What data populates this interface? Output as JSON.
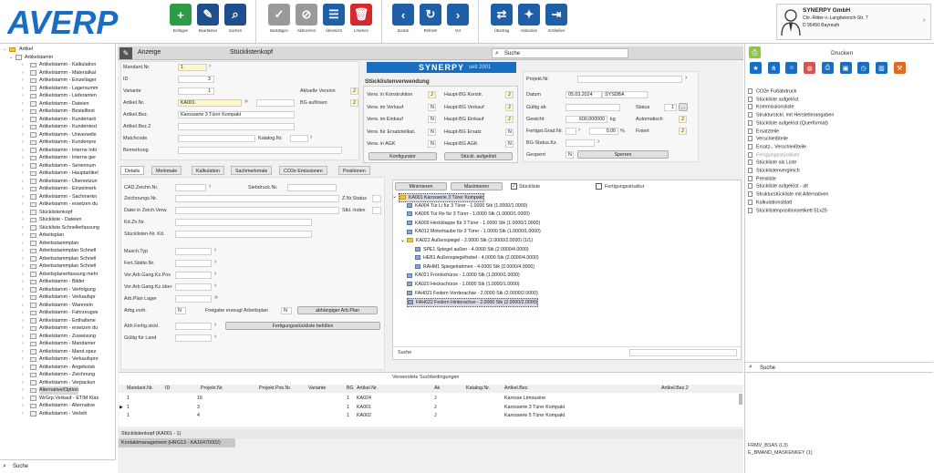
{
  "app": {
    "logo_text": "AVERP"
  },
  "toolbar": {
    "groups": [
      [
        {
          "label": "Einfügen",
          "icon": "plus-icon",
          "color": "#2e9b46"
        },
        {
          "label": "Bearbeiten",
          "icon": "pencil-icon",
          "color": "#1f4e8c"
        },
        {
          "label": "Suchen",
          "icon": "search-icon",
          "color": "#1f4e8c"
        }
      ],
      [
        {
          "label": "Bestätigen",
          "icon": "check-icon",
          "color": "#9a9a9a"
        },
        {
          "label": "Abbrechen",
          "icon": "cancel-icon",
          "color": "#9a9a9a"
        },
        {
          "label": "Übersicht",
          "icon": "list-icon",
          "color": "#1f5fa8"
        },
        {
          "label": "Löschen",
          "icon": "trash-icon",
          "color": "#d6282d"
        }
      ],
      [
        {
          "label": "Zurück",
          "icon": "chevron-left-icon",
          "color": "#1f5fa8"
        },
        {
          "label": "Refresh",
          "icon": "refresh-icon",
          "color": "#1f5fa8"
        },
        {
          "label": "Vor",
          "icon": "chevron-right-icon",
          "color": "#1f5fa8"
        }
      ],
      [
        {
          "label": "Übertrag",
          "icon": "transfer-icon",
          "color": "#1f5fa8"
        },
        {
          "label": "Abdocken",
          "icon": "pin-icon",
          "color": "#1f5fa8"
        },
        {
          "label": "Schließen",
          "icon": "exit-icon",
          "color": "#1f5fa8"
        }
      ]
    ]
  },
  "company": {
    "name": "SYNERPY GmbH",
    "street": "Chr.-Ritter-v.-Langheinrich-Str. 7",
    "city": "D 95450 Bayreuth"
  },
  "tree": {
    "root": "Artikel",
    "stamm": "Artikelstamm",
    "items": [
      "Artikelstamm - Kalkulation",
      "Artikelstamm - Materialkal",
      "Artikelstamm - Einzellager",
      "Artikelstamm - Lagersumm",
      "Artikelstamm - Lieferanten",
      "Artikelstamm - Dateien",
      "Artikelstamm - Bestelltext",
      "Artikelstamm - Kundenarti",
      "Artikelstamm - Kundentext",
      "Artikelstamm - Universelle",
      "Artikelstamm - Kundenpre",
      "Artikelstamm - Interne Info",
      "Artikelstamm - Interne ger",
      "Artikelstamm - Seriennum",
      "Artikelstamm - Hauptartikel",
      "Artikelstamm - Übersetzun",
      "Artikelstamm - Einzelmerk",
      "Artikelstamm - Sachmerkn",
      "Artikelstamm - ersetzen du",
      "Stücklistenkopf",
      "Stückliste - Dateien",
      "Stückliste Schnellerfassung",
      "Arbeitsplan",
      "Arbeitsstammplan",
      "Arbeitsstammplan Schnell",
      "Arbeitsstammplan Schnell",
      "Arbeitsstammplan Schnell",
      "Arbeitsplanerfassung mehr",
      "Artikelstamm - Bilder",
      "Artikelstamm - Verfolgung",
      "Artikelstamm - Verkaufspr",
      "Artikelstamm - Warenein",
      "Artikelstamm - Fahrzeugve",
      "Artikelstamm - Enthaltene",
      "Artikelstamm - ersetzen du",
      "Artikelstamm - Zuweisung",
      "Artikelstamm - Mandanter",
      "Artikelstamm - Mand.spez",
      "Artikelstamm - Verkaufspre",
      "Artikelstamm - Angebotsk",
      "Artikelstamm - Zeichnung",
      "Artikelstamm - Verpackun",
      "Alternative/Option",
      "WrGrp.Verkauf - ETIM Klas",
      "Artikelstamm - Alternative",
      "Artikelstamm - Verleih"
    ],
    "selected_index": 42,
    "search_label": "Suche"
  },
  "header": {
    "anzeige": "Anzeige",
    "title": "Stücklistenkopf",
    "search": "Suche"
  },
  "form": {
    "mandant_label": "Mandant.Nr.",
    "mandant_value": "1",
    "id_label": "ID",
    "id_value": "3",
    "variante_label": "Variante",
    "variante_value": "1",
    "artikelnr_label": "Artikel.Nr.",
    "artikelnr_value": "KA001",
    "artikelbez_label": "Artikel.Bez.",
    "artikelbez_value": "Karosserie 3 Türer Kompakt",
    "artikelbez2_label": "Artikel.Bez.2",
    "matchcode_label": "Matchcode",
    "katalog_label": "Katalog.Nr.",
    "bemerkung_label": "Bemerkung",
    "aktuelle_version_label": "Aktuelle Version",
    "aktuelle_version_value": "J",
    "bg_aufloesen_label": "BG auflösen",
    "bg_aufloesen_value": "J"
  },
  "brand": {
    "name": "SYNERPY",
    "since": "seit 2001",
    "color": "#1a6ec2"
  },
  "verwendung": {
    "title": "Stücklistenverwendung",
    "left": [
      {
        "label": "Verw. in Konstruktion",
        "v": "J"
      },
      {
        "label": "Verw. im Verkauf",
        "v": "N"
      },
      {
        "label": "Verw. im Einkauf",
        "v": "N"
      },
      {
        "label": "Verw. für Ersatzteilkat.",
        "v": "N"
      },
      {
        "label": "Verw. in AGK",
        "v": "N"
      }
    ],
    "right": [
      {
        "label": "Haupt-BG Konstr.",
        "v": "J"
      },
      {
        "label": "Haupt-BG Verkauf",
        "v": "J"
      },
      {
        "label": "Haupt-BG Einkauf",
        "v": "J"
      },
      {
        "label": "Haupt-BG Ersatz",
        "v": "N"
      },
      {
        "label": "Haupt-BG AGK",
        "v": "N"
      }
    ],
    "konfigurator_btn": "Konfigurator",
    "stueckl_aufgeloest_btn": "Stückl. aufgelöst"
  },
  "projekt": {
    "projekt_label": "Projekt.Nr.",
    "datum_label": "Datum",
    "datum_value": "05.03.2024",
    "datum_user": "SYSDBA",
    "gueltig_label": "Gültig ab",
    "status_label": "Status",
    "status_value": "1",
    "gewicht_label": "Gewicht",
    "gewicht_value": "600,000000",
    "gewicht_unit": "kg",
    "automatisch_label": "Automatisch",
    "automatisch_value": "J",
    "fertigst_label": "Fertigst.Grad.Nr.",
    "fertigst_value": "0,00",
    "fertigst_unit": "%",
    "fixiert_label": "Fixiert",
    "fixiert_value": "J",
    "bgstatus_label": "BG-Status.Kz.",
    "gesperrt_label": "Gesperrt",
    "gesperrt_value": "N",
    "sperren_btn": "Sperren"
  },
  "tabs": [
    "Details",
    "Merkmale",
    "Kalkulation",
    "Sachmerkmale",
    "CO2e Emissionen",
    "Positionen"
  ],
  "details": {
    "cad_label": "CAD.Zeichn.Nr.",
    "siebdruck_label": "Siebdruck.Nr.",
    "zeichnungs_label": "Zeichnungs.Nr.",
    "znrstatus_label": "Z.Nr.Status",
    "datei_label": "Datei in Zeich.Verw.",
    "stklindex_label": "Stkl.-Index",
    "kdzn_label": "Kd.Zn.Nr.",
    "stklnr_label": "Stücklisten-Nr. Kd.",
    "maschtyp_label": "Masch.Typ",
    "fertstaette_label": "Fert.Stätte.Nr.",
    "vorarb_pos_label": "Vor.Arb.Gang.Kz.Pos",
    "vorarb_ueb_label": "Vor.Arb.Gang.Kz.über",
    "arbplan_label": "Arb.Plan Lager",
    "arbgvorh_label": "Arbg.vorh.",
    "arbgvorh_value": "N",
    "freigabe_label": "Freigabe erzeugt Arbeitsplan",
    "freigabe_value": "N",
    "abh_arbplan_btn": "abhängiger Arb.Plan",
    "abh_fertig_label": "Abh.Fertig.stckl.",
    "fertig_befuellen_btn": "Fertigungsstückliste befüllen",
    "gueltig_land_label": "Gültig für Land"
  },
  "bom": {
    "minimieren": "Minimieren",
    "maximieren": "Maximieren",
    "stueckliste_label": "Stückliste",
    "fertigungsstruktur_label": "Fertigungsstruktur",
    "search_label": "Suche",
    "lines": [
      {
        "t": "KA001 Karosserie 3 Türer Kompakt",
        "lvl": 0,
        "type": "folder",
        "hl": true
      },
      {
        "t": "KA004 Tür Li für 3 Türer - 1.0000 Stk (1.0000/1.0000)",
        "lvl": 1,
        "type": "item"
      },
      {
        "t": "KA005 Tür Re für 3 Türer - 1.0000 Stk (1.0000/1.0000)",
        "lvl": 1,
        "type": "item"
      },
      {
        "t": "KA009 Heckklappe für 3 Türer - 1.0000 Stk (1.0000/1.0000)",
        "lvl": 1,
        "type": "item"
      },
      {
        "t": "KA012 Motorhaube für 3 Türer - 1.0000 Stk (1.0000/1.0000)",
        "lvl": 1,
        "type": "item"
      },
      {
        "t": "KA022 Außenspiegel - 2.0000 Stk (2.0000/2.0000) (1/1)",
        "lvl": 1,
        "type": "folder"
      },
      {
        "t": "SPE1 Spiegel außen - 4.0000 Stk (2.0000/4.0000)",
        "lvl": 2,
        "type": "item"
      },
      {
        "t": "HEB1 Außenspiegelhebel - 4.0000 Stk (2.0000/4.0000)",
        "lvl": 2,
        "type": "item"
      },
      {
        "t": "RAHM1 Spiegelrahmen - 4.0000 Stk (2.0000/4.0000)",
        "lvl": 2,
        "type": "item"
      },
      {
        "t": "KA021 Frontschürze - 1.0000 Stk (1.0000/1.0000)",
        "lvl": 1,
        "type": "item"
      },
      {
        "t": "KA020 Heckschürze - 1.0000 Stk (1.0000/1.0000)",
        "lvl": 1,
        "type": "item"
      },
      {
        "t": "FAH021 Federn Vorderachse - 2.0000 Stk (2.0000/2.0000)",
        "lvl": 1,
        "type": "item"
      },
      {
        "t": "FAH022 Federn Hinterachse - 2.0000 Stk (2.0000/2.0000)",
        "lvl": 1,
        "type": "item",
        "hl": true
      }
    ]
  },
  "suchbed": {
    "title": "Verwendete Suchbedingungen",
    "columns": [
      "Mandant.Nr.",
      "ID",
      "Projekt.Nr.",
      "Projekt.Pos.Nr.",
      "Variante",
      "BG",
      "Artikel.Nr.",
      "Ak",
      "Katalog.Nr.",
      "Artikel.Bez.",
      "Artikel.Bez.2"
    ],
    "rows": [
      [
        "1",
        "",
        "16",
        "",
        "",
        "1",
        "KA024",
        "J",
        "",
        "Karosse Limousine",
        ""
      ],
      [
        "1",
        "",
        "3",
        "",
        "",
        "1",
        "KA001",
        "J",
        "",
        "Karosserie 3 Türer Kompakt",
        ""
      ],
      [
        "1",
        "",
        "4",
        "",
        "",
        "1",
        "KA002",
        "J",
        "",
        "Karosserie 5 Türer Kompakt",
        ""
      ]
    ]
  },
  "status": {
    "line1": "Stücklistenkopf (KA001 - 1)",
    "line2": "Kontaktmanagement (HRG13 - KA16470002)"
  },
  "right": {
    "title": "Drucken",
    "icons": [
      {
        "icon": "star-icon",
        "color": "#1a6ec2"
      },
      {
        "icon": "hierarchy-icon",
        "color": "#1a6ec2"
      },
      {
        "icon": "people-icon",
        "color": "#1a6ec2"
      },
      {
        "icon": "palette-icon",
        "color": "#d9534f"
      },
      {
        "icon": "printer-icon",
        "color": "#1a6ec2"
      },
      {
        "icon": "box-icon",
        "color": "#1a6ec2"
      },
      {
        "icon": "history-icon",
        "color": "#1a6ec2"
      },
      {
        "icon": "books-icon",
        "color": "#1a6ec2"
      },
      {
        "icon": "wrench-icon",
        "color": "#e06a1f"
      }
    ],
    "items": [
      "CO2e Fußabdruck",
      "Stückliste aufgelöst",
      "Kommissionsliste",
      "Strukturstckl. mit Herstellerangaben",
      "Stückliste aufgelöst (Querformat)",
      "Ersatzteile",
      "Verschleißteile",
      "Ersatz-, Verschleißteile",
      "Fertigungsstückliste",
      "Stückliste als Liste",
      "Stücklistenvergleich",
      "Preisliste",
      "Stückliste aufgelöst - alt",
      "Strukturstückliste mit Alternativen",
      "Kalkulationsblatt",
      "Stücklistenpositionsetikett 51x25"
    ],
    "search_label": "Suche",
    "footer1": "FRMV_BSAS (L3)",
    "footer2": "E_BMAND_MASKENKEY (1)"
  }
}
